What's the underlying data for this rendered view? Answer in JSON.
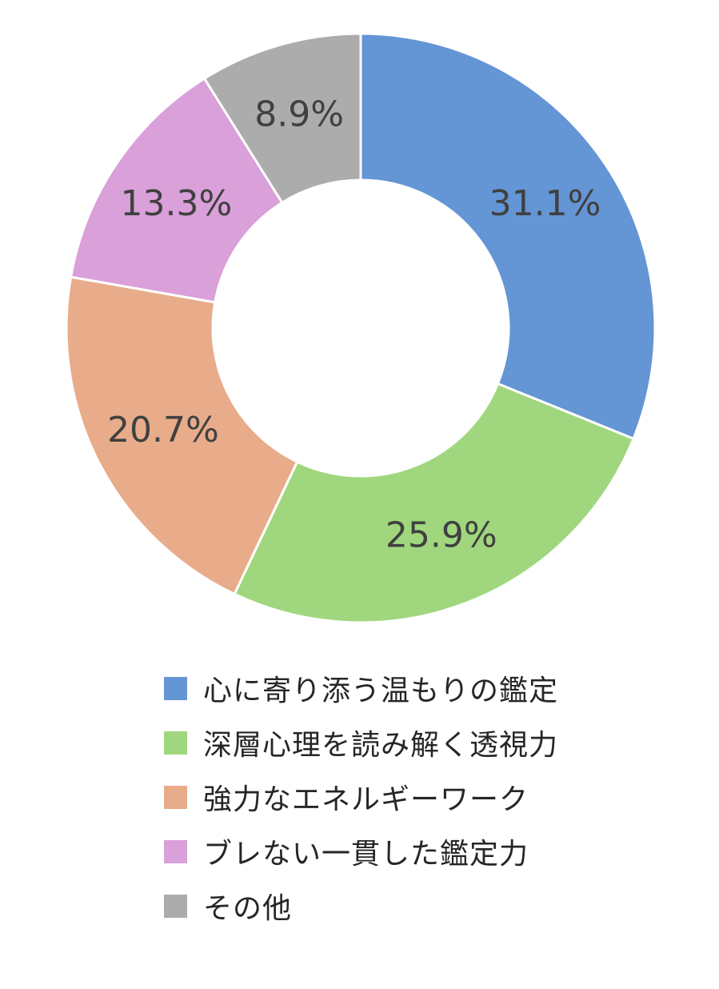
{
  "chart_data": {
    "type": "pie",
    "variant": "donut",
    "title": "",
    "categories": [
      "心に寄り添う温もりの鑑定",
      "深層心理を読み解く透視力",
      "強力なエネルギーワーク",
      "ブレない一貫した鑑定力",
      "その他"
    ],
    "values": [
      31.1,
      25.9,
      20.7,
      13.3,
      8.9
    ],
    "value_labels": [
      "31.1%",
      "25.9%",
      "20.7%",
      "13.3%",
      "8.9%"
    ],
    "colors": [
      "#6495d4",
      "#a0d77e",
      "#e8ac8a",
      "#d9a0d9",
      "#acacac"
    ],
    "start_angle": "12 o'clock",
    "direction": "clockwise",
    "legend_position": "bottom"
  }
}
